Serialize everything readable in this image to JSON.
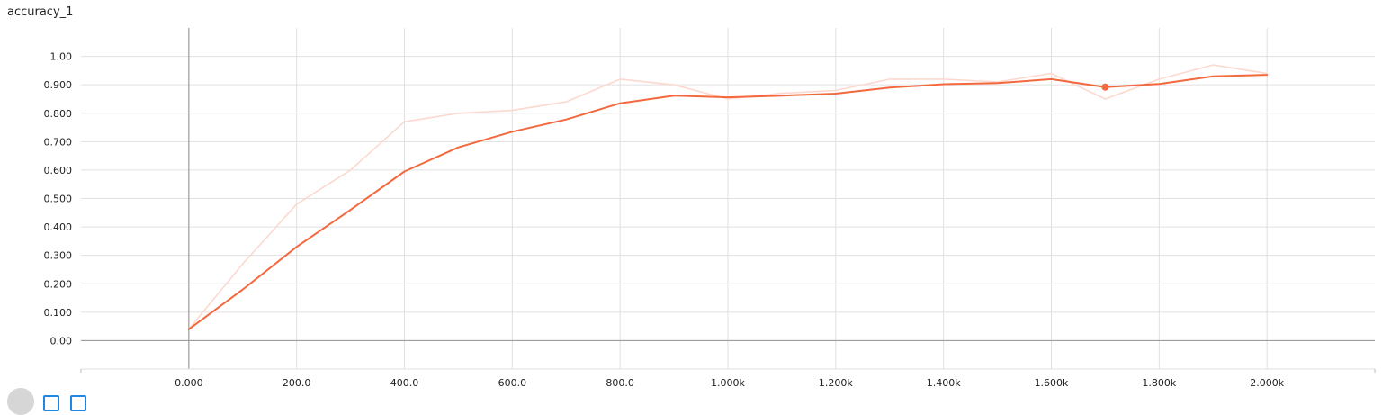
{
  "chart_data": {
    "type": "line",
    "title": "accuracy_1",
    "xlabel": "",
    "ylabel": "",
    "xlim": [
      -200,
      2200
    ],
    "ylim": [
      -0.1,
      1.1
    ],
    "x_ticks": [
      0,
      200,
      400,
      600,
      800,
      1000,
      1200,
      1400,
      1600,
      1800,
      2000
    ],
    "x_tick_labels": [
      "0.000",
      "200.0",
      "400.0",
      "600.0",
      "800.0",
      "1.000k",
      "1.200k",
      "1.400k",
      "1.600k",
      "1.800k",
      "2.000k"
    ],
    "y_ticks": [
      0,
      0.1,
      0.2,
      0.3,
      0.4,
      0.5,
      0.6,
      0.7,
      0.8,
      0.9,
      1.0
    ],
    "y_tick_labels": [
      "0.00",
      "0.100",
      "0.200",
      "0.300",
      "0.400",
      "0.500",
      "0.600",
      "0.700",
      "0.800",
      "0.900",
      "1.00"
    ],
    "grid": true,
    "series": [
      {
        "role": "raw",
        "color": "#fcd9cf",
        "x": [
          0,
          100,
          200,
          300,
          400,
          500,
          600,
          700,
          800,
          900,
          1000,
          1100,
          1200,
          1300,
          1400,
          1500,
          1600,
          1700,
          1800,
          1900,
          2000
        ],
        "y": [
          0.04,
          0.27,
          0.48,
          0.6,
          0.77,
          0.8,
          0.81,
          0.84,
          0.92,
          0.9,
          0.85,
          0.87,
          0.88,
          0.92,
          0.92,
          0.91,
          0.94,
          0.85,
          0.92,
          0.97,
          0.94
        ]
      },
      {
        "role": "smoothed",
        "color": "#f4683d",
        "x": [
          0,
          100,
          200,
          300,
          400,
          500,
          600,
          700,
          800,
          900,
          1000,
          1100,
          1200,
          1300,
          1400,
          1500,
          1600,
          1700,
          1800,
          1900,
          2000
        ],
        "y": [
          0.04,
          0.18,
          0.33,
          0.46,
          0.595,
          0.68,
          0.735,
          0.778,
          0.835,
          0.862,
          0.856,
          0.862,
          0.869,
          0.89,
          0.902,
          0.906,
          0.92,
          0.892,
          0.903,
          0.93,
          0.935
        ]
      }
    ],
    "highlight": {
      "x": 1700,
      "y": 0.892,
      "color": "#f4683d"
    }
  },
  "controls": {
    "button_color": "#1e88e5"
  }
}
